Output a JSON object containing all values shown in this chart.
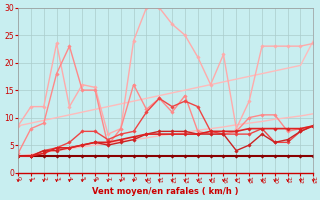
{
  "x": [
    0,
    1,
    2,
    3,
    4,
    5,
    6,
    7,
    8,
    9,
    10,
    11,
    12,
    13,
    14,
    15,
    16,
    17,
    18,
    19,
    20,
    21,
    22,
    23
  ],
  "series": [
    {
      "name": "line_upper_trend",
      "color": "#ffbbbb",
      "values": [
        8.5,
        9.0,
        9.5,
        10.0,
        10.5,
        11.0,
        11.5,
        12.0,
        12.5,
        13.0,
        13.5,
        14.0,
        14.5,
        15.0,
        15.5,
        16.0,
        16.5,
        17.0,
        17.5,
        18.0,
        18.5,
        19.0,
        19.5,
        24.0
      ],
      "lw": 1.0,
      "marker": null,
      "smooth": true
    },
    {
      "name": "line_lower_trend",
      "color": "#ffbbbb",
      "values": [
        3.0,
        3.3,
        3.7,
        4.0,
        4.3,
        4.7,
        5.0,
        5.3,
        5.7,
        6.0,
        6.3,
        6.7,
        7.0,
        7.3,
        7.7,
        8.0,
        8.3,
        8.7,
        9.0,
        9.3,
        9.7,
        10.0,
        10.3,
        10.7
      ],
      "lw": 1.0,
      "marker": null,
      "smooth": true
    },
    {
      "name": "jagged_high_pink",
      "color": "#ffaaaa",
      "values": [
        8.5,
        12,
        12,
        23.5,
        12,
        16,
        15.5,
        7,
        8,
        24,
        30,
        30,
        27,
        25,
        21,
        16,
        21.5,
        8,
        13,
        23,
        23,
        23,
        23,
        23.5
      ],
      "lw": 1.0,
      "marker": "D"
    },
    {
      "name": "jagged_mid_pink",
      "color": "#ff8888",
      "values": [
        3.5,
        8,
        9,
        18,
        23,
        15,
        15,
        5,
        8,
        16,
        11.5,
        13.5,
        11,
        14,
        7.5,
        7,
        7,
        7.5,
        10,
        10.5,
        10.5,
        7.5,
        8,
        8.5
      ],
      "lw": 1.0,
      "marker": "D"
    },
    {
      "name": "jagged_red1",
      "color": "#ee4444",
      "values": [
        3,
        3,
        4,
        4.5,
        5.5,
        7.5,
        7.5,
        6,
        7,
        7.5,
        11,
        13.5,
        12,
        13,
        12,
        7.5,
        7,
        7,
        7,
        8,
        5.5,
        5.5,
        7.5,
        8.5
      ],
      "lw": 1.0,
      "marker": "D"
    },
    {
      "name": "jagged_red2",
      "color": "#cc2222",
      "values": [
        3,
        3,
        4,
        4,
        4.5,
        5,
        5.5,
        5,
        5.5,
        6,
        7,
        7.5,
        7.5,
        7.5,
        7,
        7,
        7,
        4,
        5,
        7,
        5.5,
        6,
        7.5,
        8.5
      ],
      "lw": 1.0,
      "marker": "D"
    },
    {
      "name": "flat_darkred",
      "color": "#880000",
      "values": [
        3,
        3,
        3,
        3,
        3,
        3,
        3,
        3,
        3,
        3,
        3,
        3,
        3,
        3,
        3,
        3,
        3,
        3,
        3,
        3,
        3,
        3,
        3,
        3
      ],
      "lw": 1.5,
      "marker": "D"
    },
    {
      "name": "growing_red",
      "color": "#dd2222",
      "values": [
        3,
        3,
        3.5,
        4.5,
        4.5,
        5,
        5.5,
        5.5,
        6,
        6.5,
        7,
        7,
        7,
        7,
        7,
        7.5,
        7.5,
        7.5,
        8,
        8,
        8,
        8,
        8,
        8.5
      ],
      "lw": 1.2,
      "marker": "D"
    }
  ],
  "xlabel": "Vent moyen/en rafales ( km/h )",
  "ylim": [
    0,
    30
  ],
  "xlim": [
    0,
    23
  ],
  "yticks": [
    0,
    5,
    10,
    15,
    20,
    25,
    30
  ],
  "xticks": [
    0,
    1,
    2,
    3,
    4,
    5,
    6,
    7,
    8,
    9,
    10,
    11,
    12,
    13,
    14,
    15,
    16,
    17,
    18,
    19,
    20,
    21,
    22,
    23
  ],
  "bg_color": "#c8eef0",
  "grid_color": "#aacccc",
  "tick_color": "#cc0000",
  "label_color": "#cc0000",
  "spine_color": "#999999"
}
